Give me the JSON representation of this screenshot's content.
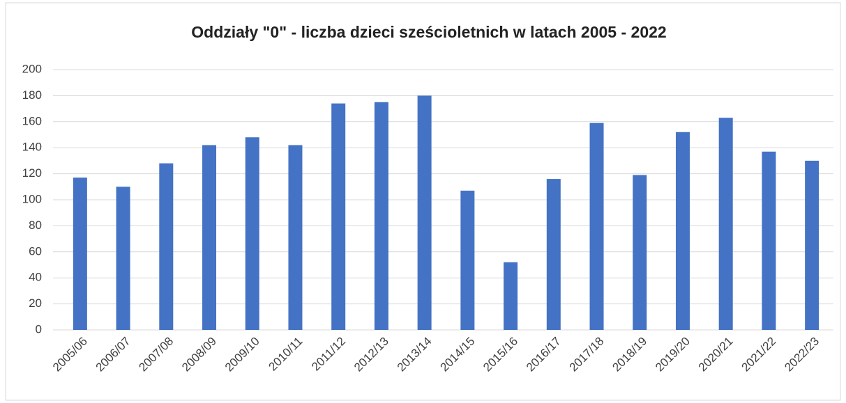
{
  "chart_data": {
    "type": "bar",
    "title": "Oddziały \"0\" - liczba dzieci sześcioletnich w latach 2005 - 2022",
    "categories": [
      "2005/06",
      "2006/07",
      "2007/08",
      "2008/09",
      "2009/10",
      "2010/11",
      "2011/12",
      "2012/13",
      "2013/14",
      "2014/15",
      "2015/16",
      "2016/17",
      "2017/18",
      "2018/19",
      "2019/20",
      "2020/21",
      "2021/22",
      "2022/23"
    ],
    "values": [
      117,
      110,
      128,
      142,
      148,
      142,
      174,
      175,
      180,
      107,
      52,
      116,
      159,
      119,
      152,
      163,
      137,
      130
    ],
    "color": "#4472c4",
    "ylim": [
      0,
      200
    ],
    "yticks": [
      0,
      20,
      40,
      60,
      80,
      100,
      120,
      140,
      160,
      180,
      200
    ],
    "grid": true
  }
}
